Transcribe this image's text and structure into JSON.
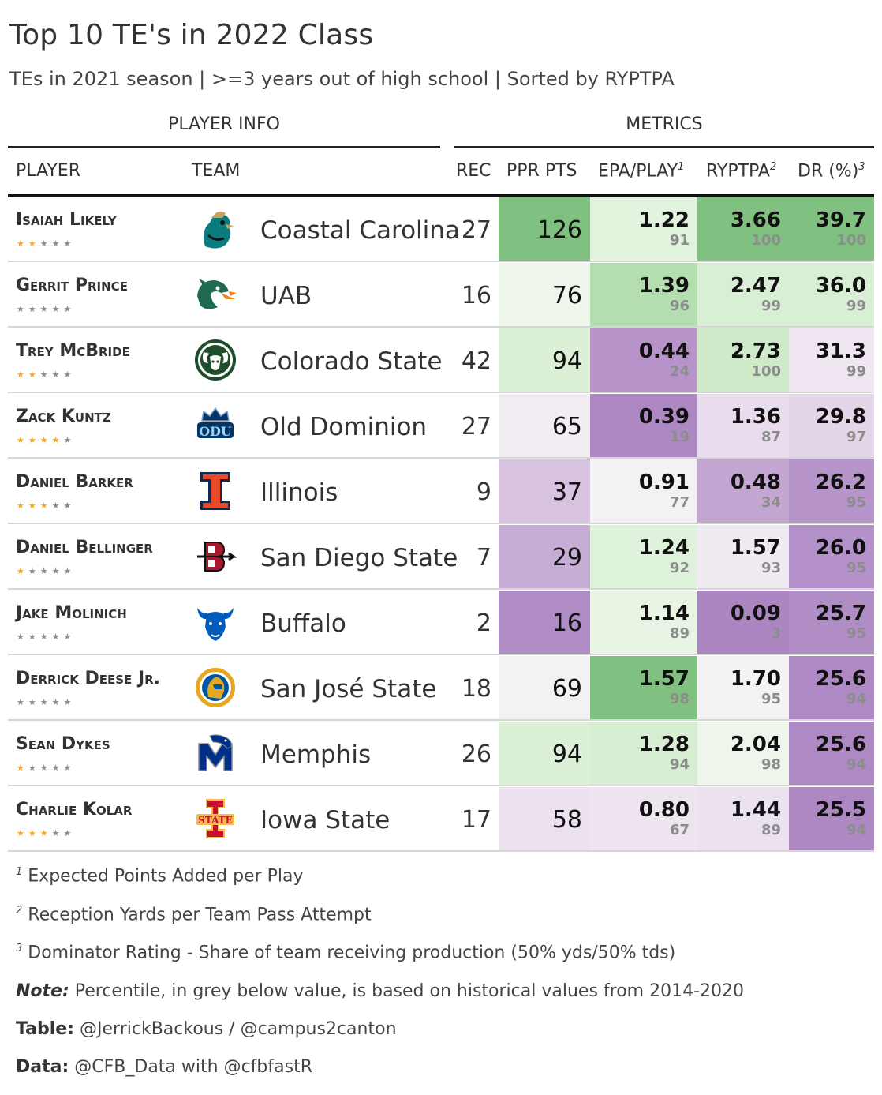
{
  "title": "Top 10 TE's in 2022 Class",
  "subtitle": "TEs in 2021 season | >=3 years out of high school | Sorted by RYPTPA",
  "spanners": {
    "player_info": "PLAYER INFO",
    "metrics": "METRICS"
  },
  "columns": {
    "player": "PLAYER",
    "team": "TEAM",
    "rec": "REC",
    "ppr": "PPR PTS",
    "epa": "EPA/PLAY",
    "epa_sup": "1",
    "ryptpa": "RYPTPA",
    "ryptpa_sup": "2",
    "dr": "DR (%)",
    "dr_sup": "3"
  },
  "rows": [
    {
      "player": "Isaiah Likely",
      "stars": 2,
      "team": "Coastal Carolina",
      "logo": "coastal-carolina-chanticleer-logo",
      "rec": "27",
      "ppr": "126",
      "epa": "1.22",
      "epa_pct": "91",
      "ryptpa": "3.66",
      "ryptpa_pct": "100",
      "dr": "39.7",
      "dr_pct": "100",
      "colors": {
        "ppr": "#80c080",
        "epa": "#e2f3de",
        "ryptpa": "#80c080",
        "dr": "#80c080"
      }
    },
    {
      "player": "Gerrit Prince",
      "stars": 0,
      "team": "UAB",
      "logo": "uab-dragon-logo",
      "rec": "16",
      "ppr": "76",
      "epa": "1.39",
      "epa_pct": "96",
      "ryptpa": "2.47",
      "ryptpa_pct": "99",
      "dr": "36.0",
      "dr_pct": "99",
      "colors": {
        "ppr": "#eef6ec",
        "epa": "#b5deb0",
        "ryptpa": "#d9efd5",
        "dr": "#d9efd5"
      }
    },
    {
      "player": "Trey McBride",
      "stars": 2,
      "team": "Colorado State",
      "logo": "colorado-state-ram-logo",
      "rec": "42",
      "ppr": "94",
      "epa": "0.44",
      "epa_pct": "24",
      "ryptpa": "2.73",
      "ryptpa_pct": "100",
      "dr": "31.3",
      "dr_pct": "99",
      "colors": {
        "ppr": "#dcf0d8",
        "epa": "#b694c9",
        "ryptpa": "#cfeac9",
        "dr": "#efe6f1"
      }
    },
    {
      "player": "Zack Kuntz",
      "stars": 4,
      "team": "Old Dominion",
      "logo": "old-dominion-crown-logo",
      "rec": "27",
      "ppr": "65",
      "epa": "0.39",
      "epa_pct": "19",
      "ryptpa": "1.36",
      "ryptpa_pct": "87",
      "dr": "29.8",
      "dr_pct": "97",
      "colors": {
        "ppr": "#f2ecf3",
        "epa": "#ae88c3",
        "ryptpa": "#e9dded",
        "dr": "#e4d6e9"
      }
    },
    {
      "player": "Daniel Barker",
      "stars": 3,
      "team": "Illinois",
      "logo": "illinois-block-i-logo",
      "rec": "9",
      "ppr": "37",
      "epa": "0.91",
      "epa_pct": "77",
      "ryptpa": "0.48",
      "ryptpa_pct": "34",
      "dr": "26.2",
      "dr_pct": "95",
      "colors": {
        "ppr": "#d7c3e0",
        "epa": "#f4f1f5",
        "ryptpa": "#c3a6d2",
        "dr": "#b795ca"
      }
    },
    {
      "player": "Daniel Bellinger",
      "stars": 1,
      "team": "San Diego State",
      "logo": "san-diego-state-sd-logo",
      "rec": "7",
      "ppr": "29",
      "epa": "1.24",
      "epa_pct": "92",
      "ryptpa": "1.57",
      "ryptpa_pct": "93",
      "dr": "26.0",
      "dr_pct": "95",
      "colors": {
        "ppr": "#c7acd6",
        "epa": "#dff2db",
        "ryptpa": "#f0eaf2",
        "dr": "#b491c8"
      }
    },
    {
      "player": "Jake Molinich",
      "stars": 0,
      "team": "Buffalo",
      "logo": "buffalo-bull-logo",
      "rec": "2",
      "ppr": "16",
      "epa": "1.14",
      "epa_pct": "89",
      "ryptpa": "0.09",
      "ryptpa_pct": "3",
      "dr": "25.7",
      "dr_pct": "95",
      "colors": {
        "ppr": "#b08cc4",
        "epa": "#e8f5e5",
        "ryptpa": "#ab86c1",
        "dr": "#b08dc5"
      }
    },
    {
      "player": "Derrick Deese Jr.",
      "stars": 0,
      "team": "San José State",
      "logo": "san-jose-state-spartan-logo",
      "rec": "18",
      "ppr": "69",
      "epa": "1.57",
      "epa_pct": "98",
      "ryptpa": "1.70",
      "ryptpa_pct": "95",
      "dr": "25.6",
      "dr_pct": "94",
      "colors": {
        "ppr": "#f4f1f5",
        "epa": "#80c080",
        "ryptpa": "#f5f2f6",
        "dr": "#ae89c3"
      }
    },
    {
      "player": "Sean Dykes",
      "stars": 1,
      "team": "Memphis",
      "logo": "memphis-tiger-logo",
      "rec": "26",
      "ppr": "94",
      "epa": "1.28",
      "epa_pct": "94",
      "ryptpa": "2.04",
      "ryptpa_pct": "98",
      "dr": "25.6",
      "dr_pct": "94",
      "colors": {
        "ppr": "#dcf0d8",
        "epa": "#d7eed3",
        "ryptpa": "#eef6ec",
        "dr": "#ae89c3"
      }
    },
    {
      "player": "Charlie Kolar",
      "stars": 3,
      "team": "Iowa State",
      "logo": "iowa-state-i-logo",
      "rec": "17",
      "ppr": "58",
      "epa": "0.80",
      "epa_pct": "67",
      "ryptpa": "1.44",
      "ryptpa_pct": "89",
      "dr": "25.5",
      "dr_pct": "94",
      "colors": {
        "ppr": "#ece1ee",
        "epa": "#eee5f0",
        "ryptpa": "#ece2ef",
        "dr": "#ad88c3"
      }
    }
  ],
  "footnotes": [
    {
      "mark": "1",
      "text": "Expected Points Added per Play"
    },
    {
      "mark": "2",
      "text": "Reception Yards per Team Pass Attempt"
    },
    {
      "mark": "3",
      "text": "Dominator Rating - Share of team receiving production (50% yds/50% tds)"
    }
  ],
  "notes": [
    {
      "label": "Note:",
      "text": " Percentile, in grey below value, is based on historical values from 2014-2020"
    },
    {
      "label": "Table:",
      "text": " @JerrickBackous / @campus2canton"
    },
    {
      "label": "Data:",
      "text": " @CFB_Data with @cfbfastR"
    }
  ]
}
